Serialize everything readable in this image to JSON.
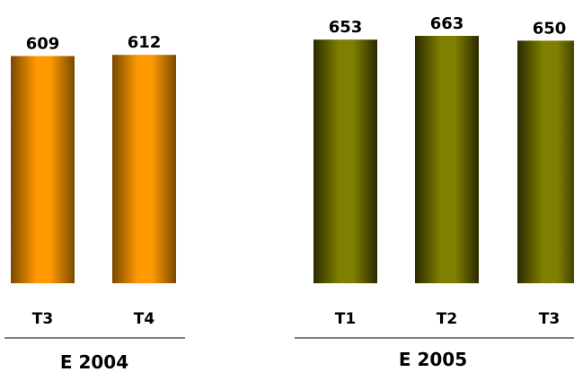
{
  "chart_data": {
    "type": "bar",
    "title": "",
    "xlabel": "",
    "ylabel": "",
    "ylim": [
      0,
      700
    ],
    "grid": false,
    "legend": "none",
    "groups": [
      {
        "label": "E 2004",
        "color": "#ff9900",
        "shade": "#7a4a00",
        "bars": [
          {
            "category": "T3",
            "value": 609
          },
          {
            "category": "T4",
            "value": 612
          }
        ]
      },
      {
        "label": "E 2005",
        "color": "#808000",
        "shade": "#2a2a00",
        "bars": [
          {
            "category": "T1",
            "value": 653
          },
          {
            "category": "T2",
            "value": 663
          },
          {
            "category": "T3",
            "value": 650
          }
        ]
      }
    ]
  }
}
